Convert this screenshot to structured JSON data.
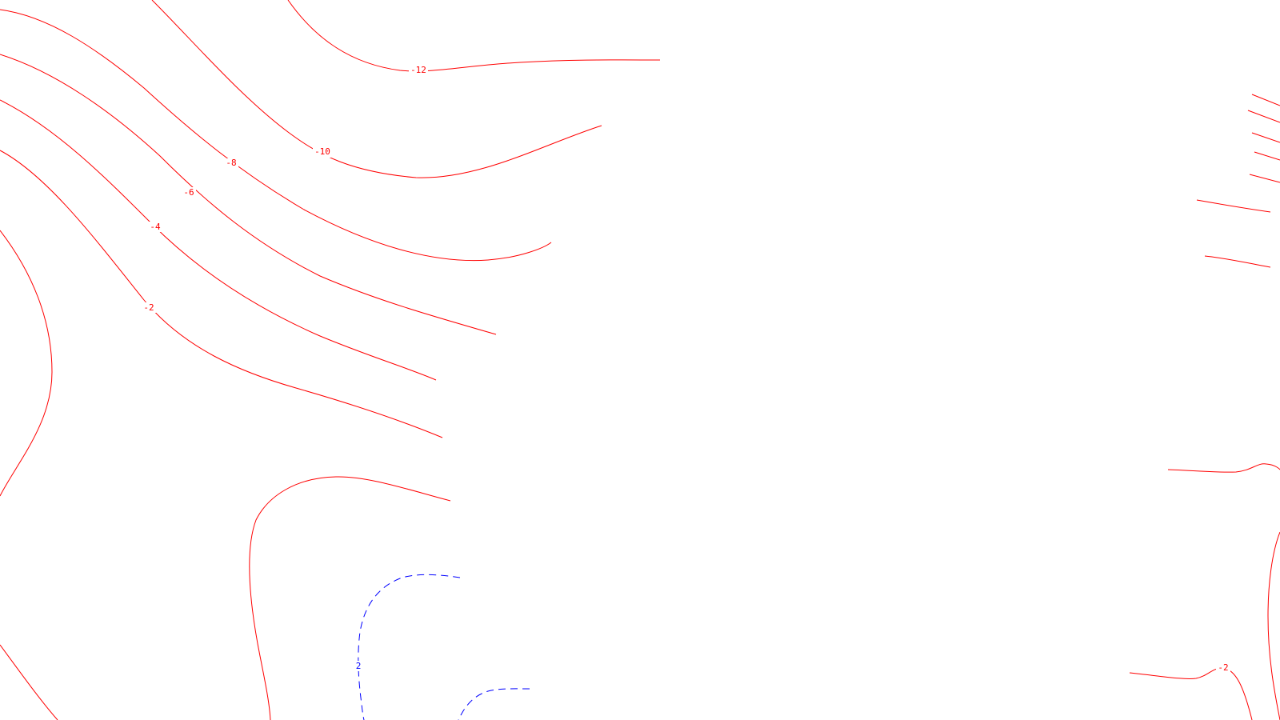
{
  "map": {
    "colors": {
      "negative": "#ff0000",
      "positive": "#0000ff",
      "background": "#ffffff"
    },
    "labels": {
      "neg12": "-12",
      "neg10": "-10",
      "neg8": "-8",
      "neg6": "-6",
      "neg4": "-4",
      "neg2_left": "-2",
      "neg2_right": "-2",
      "pos2": "2"
    }
  }
}
